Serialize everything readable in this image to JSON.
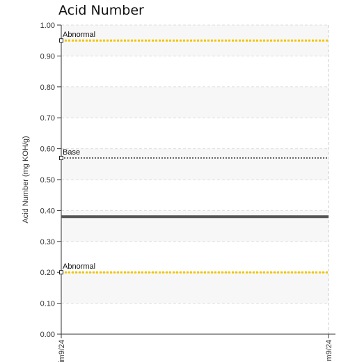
{
  "chart_data": {
    "type": "line",
    "title": "Acid Number",
    "ylabel": "Acid Number (mg KOH/g)",
    "xlabel": "",
    "ylim": [
      0,
      1.0
    ],
    "yticks": [
      "0.00",
      "0.10",
      "0.20",
      "0.30",
      "0.40",
      "0.50",
      "0.60",
      "0.70",
      "0.80",
      "0.90",
      "1.00"
    ],
    "xticks": [
      "im9/24",
      "m9/24"
    ],
    "grid": true,
    "series": [
      {
        "name": "",
        "values": [
          0.38,
          0.38
        ],
        "color": "#555555",
        "style": "solid"
      }
    ],
    "reference_lines": [
      {
        "label": "Abnormal",
        "value": 0.95,
        "color": "#f2c500",
        "style": "dotted"
      },
      {
        "label": "Base",
        "value": 0.57,
        "color": "#222222",
        "style": "dotted"
      },
      {
        "label": "Abnormal",
        "value": 0.2,
        "color": "#f2c500",
        "style": "dotted"
      }
    ]
  }
}
